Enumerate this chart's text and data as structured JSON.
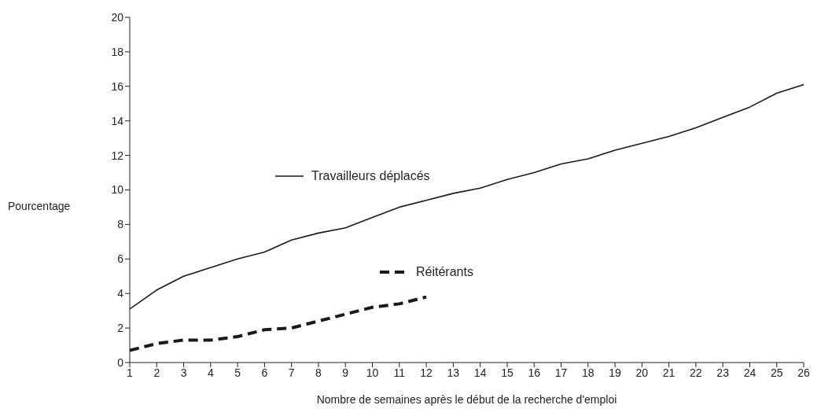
{
  "chart_data": {
    "type": "line",
    "xlabel": "Nombre de semaines après le début de la recherche d'emploi",
    "ylabel": "Pourcentage",
    "x": [
      1,
      2,
      3,
      4,
      5,
      6,
      7,
      8,
      9,
      10,
      11,
      12,
      13,
      14,
      15,
      16,
      17,
      18,
      19,
      20,
      21,
      22,
      23,
      24,
      25,
      26
    ],
    "series": [
      {
        "name": "Travailleurs déplacés",
        "color": "#1a1a1a",
        "line_style": "solid",
        "values": [
          3.1,
          4.2,
          5.0,
          5.5,
          6.0,
          6.4,
          7.1,
          7.5,
          7.8,
          8.4,
          9.0,
          9.4,
          9.8,
          10.1,
          10.6,
          11.0,
          11.5,
          11.8,
          12.3,
          12.7,
          13.1,
          13.6,
          14.2,
          14.8,
          15.6,
          16.1
        ]
      },
      {
        "name": "Réitérants",
        "color": "#1a1a1a",
        "line_style": "dashed",
        "values": [
          0.7,
          1.1,
          1.3,
          1.3,
          1.5,
          1.9,
          2.0,
          2.4,
          2.8,
          3.2,
          3.4,
          3.8,
          null,
          null,
          null,
          null,
          null,
          null,
          null,
          null,
          null,
          null,
          null,
          null,
          null,
          null
        ]
      }
    ],
    "xlim": [
      1,
      26
    ],
    "xticks": [
      1,
      2,
      3,
      4,
      5,
      6,
      7,
      8,
      9,
      10,
      11,
      12,
      13,
      14,
      15,
      16,
      17,
      18,
      19,
      20,
      21,
      22,
      23,
      24,
      25,
      26
    ],
    "ylim": [
      0,
      20
    ],
    "yticks": [
      0,
      2,
      4,
      6,
      8,
      10,
      12,
      14,
      16,
      18,
      20
    ],
    "grid": false,
    "legend": "left",
    "marker": "none"
  }
}
